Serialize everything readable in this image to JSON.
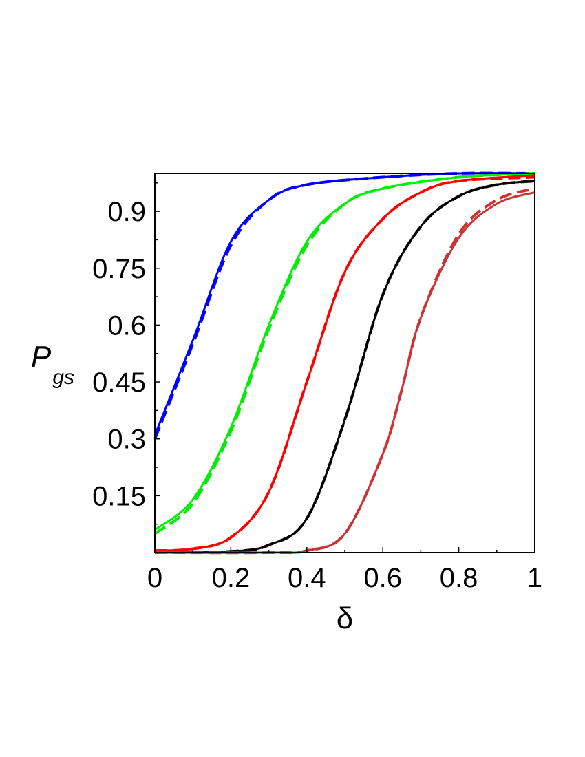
{
  "chart_data": {
    "type": "line",
    "xlabel": "δ",
    "ylabel": {
      "main": "P",
      "sub": "gs"
    },
    "xlim": [
      0,
      1
    ],
    "ylim": [
      0,
      1
    ],
    "xticks": [
      0,
      0.2,
      0.4,
      0.6,
      0.8,
      1
    ],
    "xtick_labels": [
      "0",
      "0.2",
      "0.4",
      "0.6",
      "0.8",
      "1"
    ],
    "yticks": [
      0.15,
      0.3,
      0.45,
      0.6,
      0.75,
      0.9
    ],
    "ytick_labels": [
      "0.15",
      "0.3",
      "0.45",
      "0.6",
      "0.75",
      "0.9"
    ],
    "grid": false,
    "series": [
      {
        "color": "#0000ff",
        "style": "solid",
        "x": [
          0,
          0.1,
          0.2,
          0.3,
          0.4,
          0.6,
          0.8,
          1
        ],
        "y": [
          0.31,
          0.56,
          0.82,
          0.93,
          0.97,
          0.99,
          1.0,
          1.0
        ]
      },
      {
        "color": "#0000ff",
        "style": "dashed",
        "x": [
          0,
          0.1,
          0.2,
          0.3,
          0.4,
          0.6,
          0.8,
          1
        ],
        "y": [
          0.3,
          0.55,
          0.81,
          0.93,
          0.97,
          0.99,
          1.0,
          1.0
        ]
      },
      {
        "color": "#00ee00",
        "style": "solid",
        "x": [
          0,
          0.1,
          0.2,
          0.3,
          0.4,
          0.5,
          0.6,
          0.8,
          1
        ],
        "y": [
          0.06,
          0.14,
          0.33,
          0.6,
          0.82,
          0.92,
          0.96,
          0.99,
          1.0
        ]
      },
      {
        "color": "#00ee00",
        "style": "dashed",
        "x": [
          0,
          0.1,
          0.2,
          0.3,
          0.4,
          0.5,
          0.6,
          0.8,
          1
        ],
        "y": [
          0.05,
          0.13,
          0.32,
          0.59,
          0.81,
          0.92,
          0.96,
          0.99,
          1.0
        ]
      },
      {
        "color": "#ff0000",
        "style": "solid",
        "x": [
          0,
          0.1,
          0.2,
          0.3,
          0.4,
          0.5,
          0.6,
          0.7,
          0.8,
          1
        ],
        "y": [
          0.005,
          0.01,
          0.04,
          0.16,
          0.45,
          0.74,
          0.88,
          0.95,
          0.98,
          0.995
        ]
      },
      {
        "color": "#ff0000",
        "style": "dashed",
        "x": [
          0,
          0.1,
          0.2,
          0.3,
          0.4,
          0.5,
          0.6,
          0.7,
          0.8,
          1
        ],
        "y": [
          0.005,
          0.01,
          0.04,
          0.16,
          0.45,
          0.74,
          0.88,
          0.95,
          0.98,
          0.99
        ]
      },
      {
        "color": "#000000",
        "style": "solid",
        "x": [
          0,
          0.2,
          0.3,
          0.4,
          0.5,
          0.6,
          0.7,
          0.8,
          0.9,
          1
        ],
        "y": [
          0.0,
          0.003,
          0.02,
          0.09,
          0.35,
          0.68,
          0.86,
          0.94,
          0.97,
          0.98
        ]
      },
      {
        "color": "#000000",
        "style": "dashed",
        "x": [
          0,
          0.2,
          0.3,
          0.4,
          0.5,
          0.6,
          0.7,
          0.8,
          0.9,
          1
        ],
        "y": [
          0.0,
          0.003,
          0.02,
          0.09,
          0.35,
          0.68,
          0.86,
          0.94,
          0.97,
          0.98
        ]
      },
      {
        "color": "#cc3333",
        "style": "solid",
        "x": [
          0,
          0.3,
          0.4,
          0.5,
          0.6,
          0.65,
          0.7,
          0.8,
          0.9,
          1
        ],
        "y": [
          0.0,
          0.0,
          0.005,
          0.05,
          0.26,
          0.43,
          0.62,
          0.83,
          0.92,
          0.95
        ]
      },
      {
        "color": "#cc3333",
        "style": "dashed",
        "x": [
          0,
          0.3,
          0.4,
          0.5,
          0.6,
          0.65,
          0.7,
          0.8,
          0.9,
          1
        ],
        "y": [
          0.0,
          0.0,
          0.005,
          0.05,
          0.26,
          0.43,
          0.62,
          0.84,
          0.93,
          0.96
        ]
      }
    ]
  }
}
